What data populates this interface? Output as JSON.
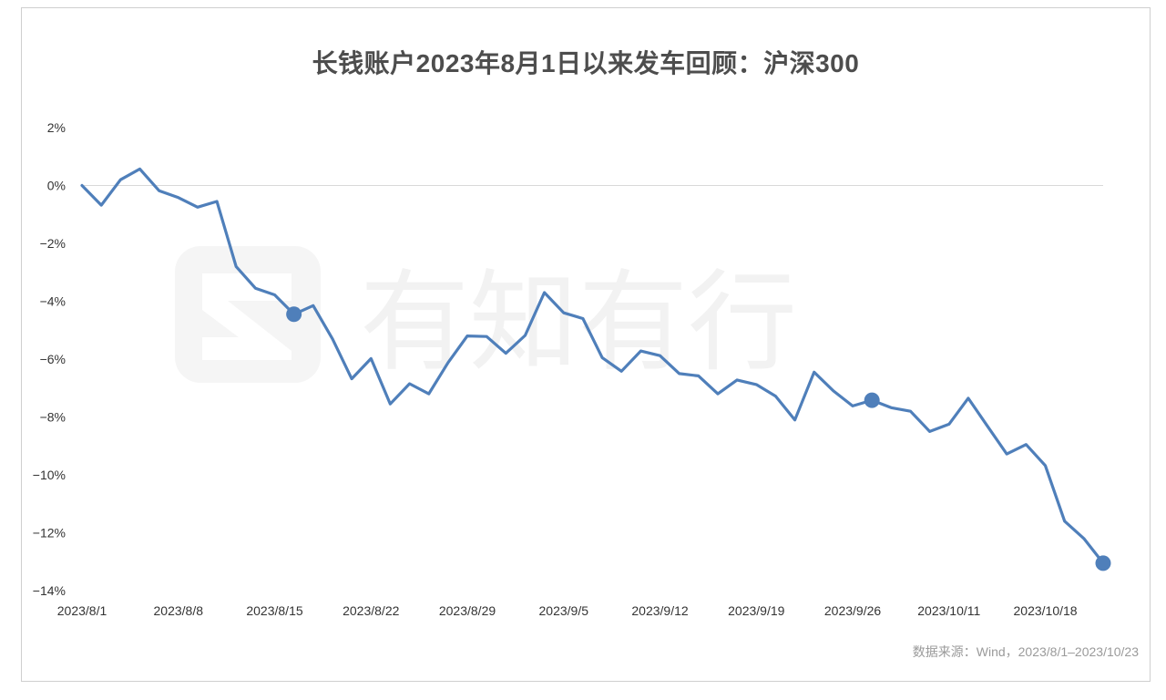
{
  "chart_data": {
    "type": "line",
    "title": "长钱账户2023年8月1日以来发车回顾：沪深300",
    "ylim": [
      -14,
      2
    ],
    "yticks": [
      2,
      0,
      -2,
      -4,
      -6,
      -8,
      -10,
      -12,
      -14
    ],
    "ytick_labels": [
      "2%",
      "0%",
      "−2%",
      "−4%",
      "−6%",
      "−8%",
      "−10%",
      "−12%",
      "−14%"
    ],
    "xtick_labels": [
      "2023/8/1",
      "2023/8/8",
      "2023/8/15",
      "2023/8/22",
      "2023/8/29",
      "2023/9/5",
      "2023/9/12",
      "2023/9/19",
      "2023/9/26",
      "2023/10/11",
      "2023/10/18"
    ],
    "xtick_positions": [
      0,
      5,
      10,
      15,
      20,
      25,
      30,
      35,
      40,
      45,
      50
    ],
    "zero_line": true,
    "legend": "none",
    "color": "#4f7fba",
    "series": [
      {
        "values": [
          0.0,
          -0.68,
          0.2,
          0.57,
          -0.18,
          -0.42,
          -0.75,
          -0.55,
          -2.8,
          -3.55,
          -3.78,
          -4.45,
          -4.15,
          -5.3,
          -6.68,
          -5.98,
          -7.55,
          -6.85,
          -7.2,
          -6.12,
          -5.2,
          -5.22,
          -5.8,
          -5.18,
          -3.7,
          -4.4,
          -4.6,
          -5.95,
          -6.42,
          -5.72,
          -5.88,
          -6.5,
          -6.58,
          -7.2,
          -6.72,
          -6.88,
          -7.28,
          -8.1,
          -6.45,
          -7.1,
          -7.62,
          -7.42,
          -7.68,
          -7.8,
          -8.5,
          -8.25,
          -7.35,
          -8.32,
          -9.28,
          -8.95,
          -9.68,
          -11.6,
          -12.2,
          -13.05
        ]
      }
    ],
    "markers": [
      {
        "x_index": 11,
        "value": -4.45
      },
      {
        "x_index": 41,
        "value": -7.42
      },
      {
        "x_index": 53,
        "value": -13.05
      }
    ]
  },
  "watermark": {
    "text": "有知有行"
  },
  "source": "数据来源：Wind，2023/8/1–2023/10/23"
}
